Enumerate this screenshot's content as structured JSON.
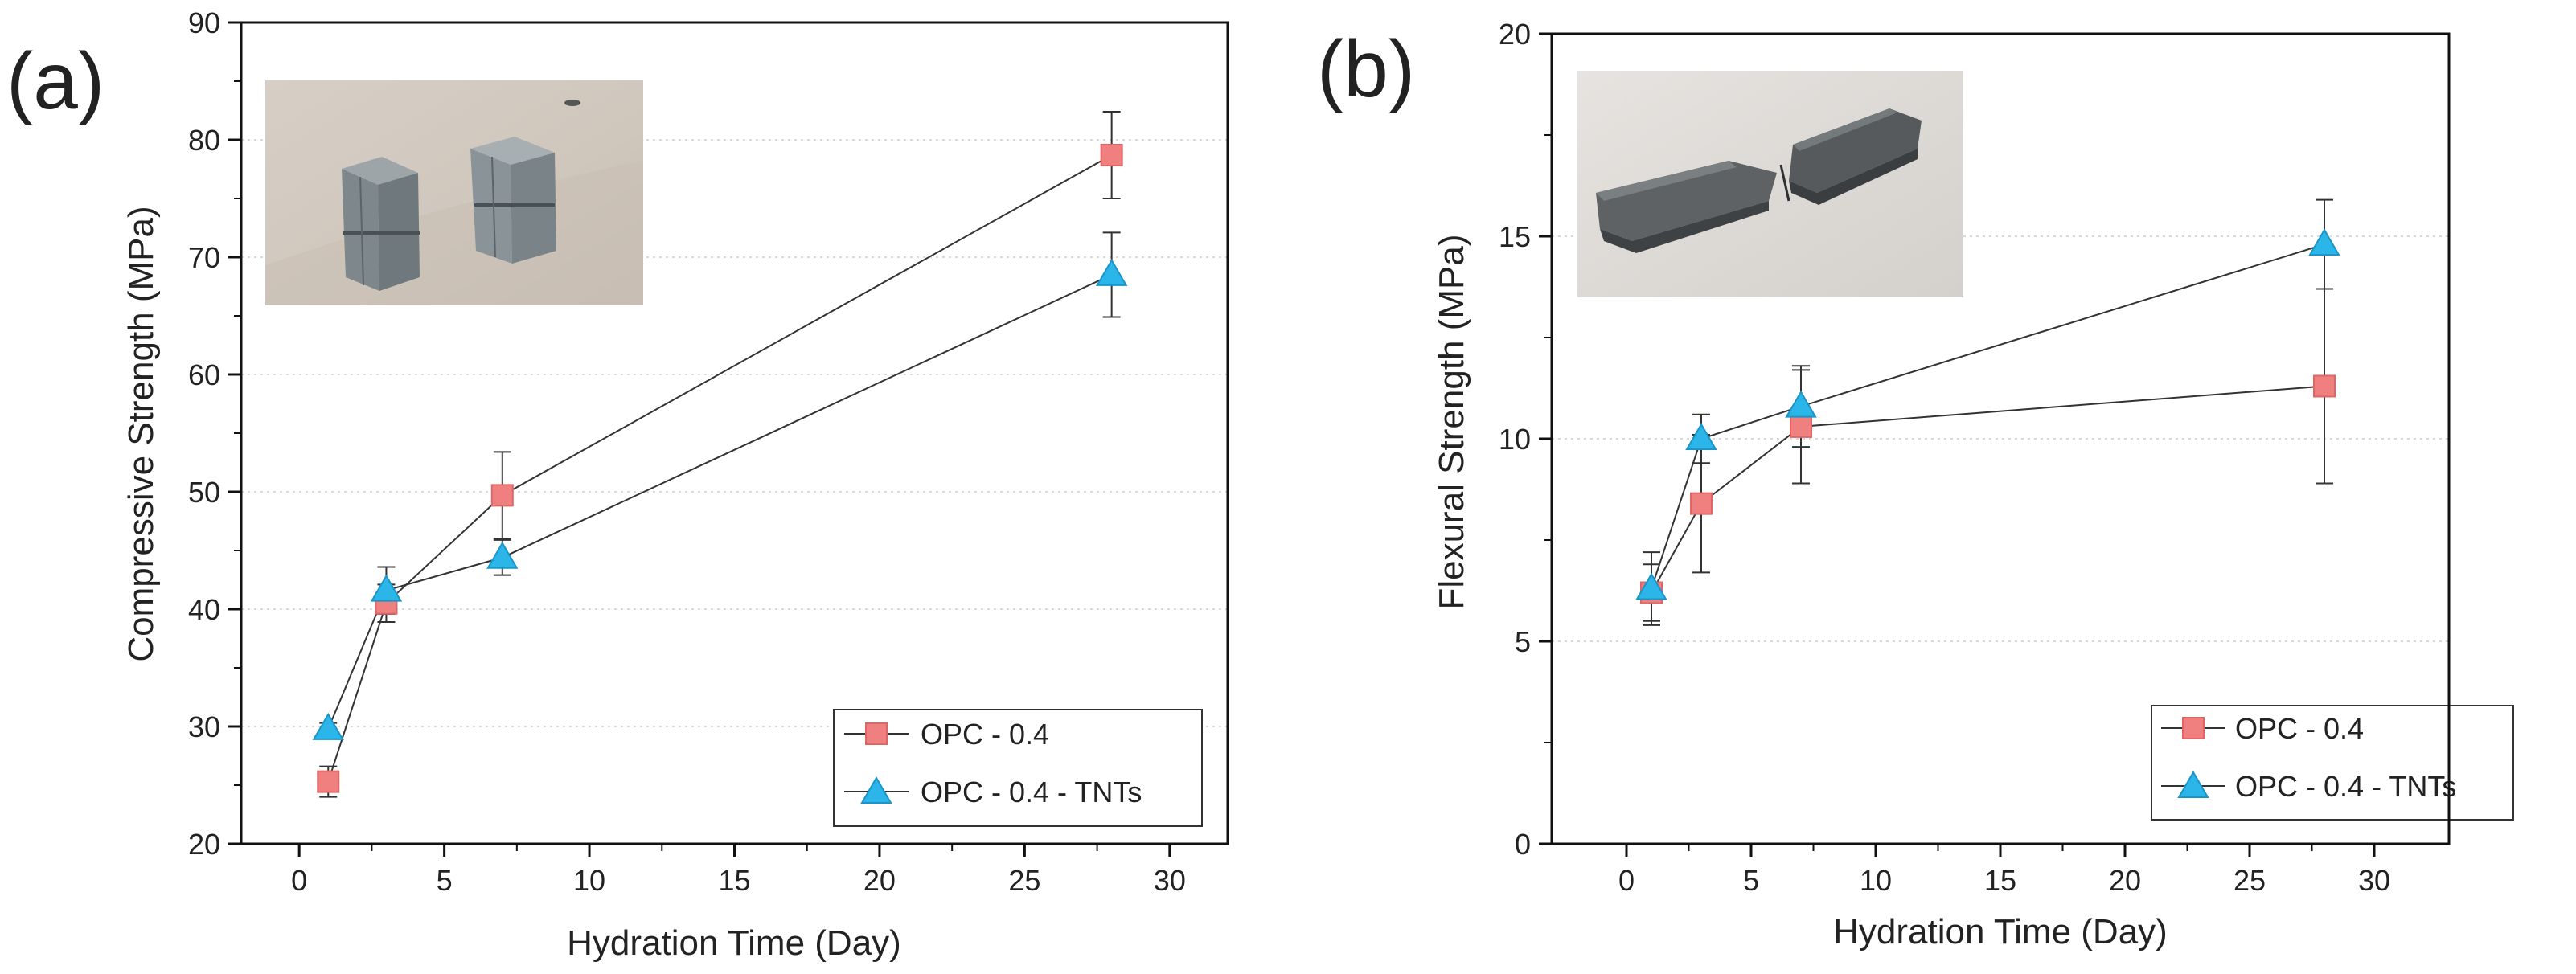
{
  "colors": {
    "series_a": "#f08080",
    "series_a_edge": "#e06666",
    "series_b": "#2bb5e8",
    "series_b_edge": "#1b95c8",
    "line": "#333333",
    "grid": "#d8d8d8",
    "axis": "#111111"
  },
  "inset_a": {
    "kind": "photo",
    "content": "broken cube specimens"
  },
  "inset_b": {
    "kind": "photo",
    "content": "fractured prism specimen"
  },
  "chart_data": [
    {
      "type": "line",
      "panel_label": "(a)",
      "title": "",
      "xlabel": "Hydration Time (Day)",
      "ylabel": "Compressive Strength (MPa)",
      "xlim": [
        -2,
        32
      ],
      "ylim": [
        20,
        90
      ],
      "xticks": [
        0,
        5,
        10,
        15,
        20,
        25,
        30
      ],
      "yticks": [
        20,
        30,
        40,
        50,
        60,
        70,
        80,
        90
      ],
      "grid": "horizontal dotted",
      "legend_position": "bottom-right",
      "series": [
        {
          "name": "OPC - 0.4",
          "marker": "square",
          "x": [
            1,
            3,
            7,
            28
          ],
          "y": [
            25.3,
            40.5,
            49.7,
            78.7
          ],
          "err": [
            1.3,
            1.6,
            3.7,
            3.7
          ]
        },
        {
          "name": "OPC - 0.4 - TNTs",
          "marker": "triangle",
          "x": [
            1,
            3,
            7,
            28
          ],
          "y": [
            29.8,
            41.6,
            44.4,
            68.5
          ],
          "err": [
            0.5,
            2.0,
            1.5,
            3.6
          ]
        }
      ]
    },
    {
      "type": "line",
      "panel_label": "(b)",
      "title": "",
      "xlabel": "Hydration Time (Day)",
      "ylabel": "Flexural Strength (MPa)",
      "xlim": [
        -3,
        33
      ],
      "ylim": [
        0,
        20
      ],
      "xticks": [
        0,
        5,
        10,
        15,
        20,
        25,
        30
      ],
      "yticks": [
        0,
        5,
        10,
        15,
        20
      ],
      "grid": "horizontal dotted",
      "legend_position": "bottom-right",
      "series": [
        {
          "name": "OPC - 0.4",
          "marker": "square",
          "x": [
            1,
            3,
            7,
            28
          ],
          "y": [
            6.2,
            8.4,
            10.3,
            11.3
          ],
          "err": [
            0.7,
            1.7,
            1.4,
            2.4
          ]
        },
        {
          "name": "OPC - 0.4 - TNTs",
          "marker": "triangle",
          "x": [
            1,
            3,
            7,
            28
          ],
          "y": [
            6.3,
            10.0,
            10.8,
            14.8
          ],
          "err": [
            0.9,
            0.6,
            1.0,
            1.1
          ]
        }
      ]
    }
  ]
}
